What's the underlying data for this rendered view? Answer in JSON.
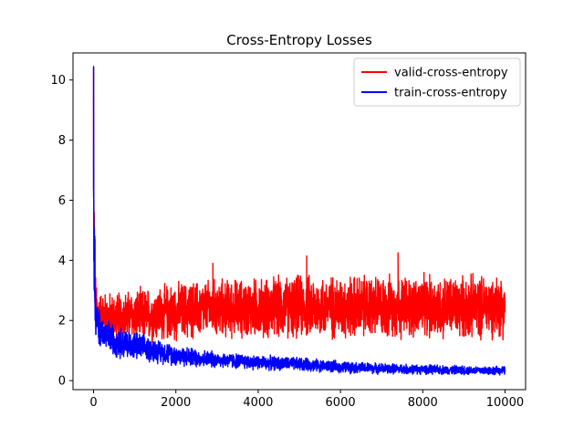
{
  "chart_data": {
    "type": "line",
    "title": "Cross-Entropy Losses",
    "xlabel": "",
    "ylabel": "",
    "xlim": [
      -500,
      10500
    ],
    "ylim": [
      -0.3,
      10.9
    ],
    "xticks": [
      0,
      2000,
      4000,
      6000,
      8000,
      10000
    ],
    "yticks": [
      0,
      2,
      4,
      6,
      8,
      10
    ],
    "grid": false,
    "legend_position": "top-right",
    "series": [
      {
        "name": "valid-cross-entropy",
        "color": "#ff0000",
        "x": [
          0,
          50,
          100,
          200,
          400,
          700,
          1000,
          1500,
          2000,
          3000,
          4000,
          5000,
          6000,
          7000,
          8000,
          9000,
          10000
        ],
        "mean": [
          5.5,
          2.5,
          2.2,
          2.2,
          2.1,
          2.1,
          2.15,
          2.2,
          2.3,
          2.4,
          2.4,
          2.45,
          2.45,
          2.45,
          2.45,
          2.45,
          2.5
        ],
        "noise_amplitude": [
          3.5,
          1.2,
          1.0,
          0.9,
          0.95,
          1.0,
          1.0,
          1.05,
          1.1,
          1.1,
          1.15,
          1.2,
          1.2,
          1.2,
          1.2,
          1.2,
          1.2
        ],
        "peaks": [
          [
            0,
            10.4
          ],
          [
            5180,
            4.15
          ],
          [
            7400,
            4.25
          ],
          [
            2900,
            3.9
          ]
        ]
      },
      {
        "name": "train-cross-entropy",
        "color": "#0000ff",
        "x": [
          0,
          20,
          60,
          150,
          300,
          600,
          1000,
          1500,
          2000,
          2500,
          3000,
          4000,
          5000,
          6000,
          7000,
          8000,
          9000,
          10000
        ],
        "mean": [
          6.0,
          3.0,
          2.0,
          1.7,
          1.5,
          1.3,
          1.15,
          1.0,
          0.85,
          0.75,
          0.7,
          0.6,
          0.55,
          0.45,
          0.4,
          0.37,
          0.35,
          0.33
        ],
        "noise_amplitude": [
          4.4,
          1.2,
          0.8,
          0.7,
          0.65,
          0.6,
          0.55,
          0.45,
          0.4,
          0.35,
          0.3,
          0.28,
          0.25,
          0.22,
          0.2,
          0.18,
          0.17,
          0.16
        ],
        "peaks": [
          [
            0,
            10.45
          ],
          [
            30,
            4.8
          ]
        ]
      }
    ]
  }
}
